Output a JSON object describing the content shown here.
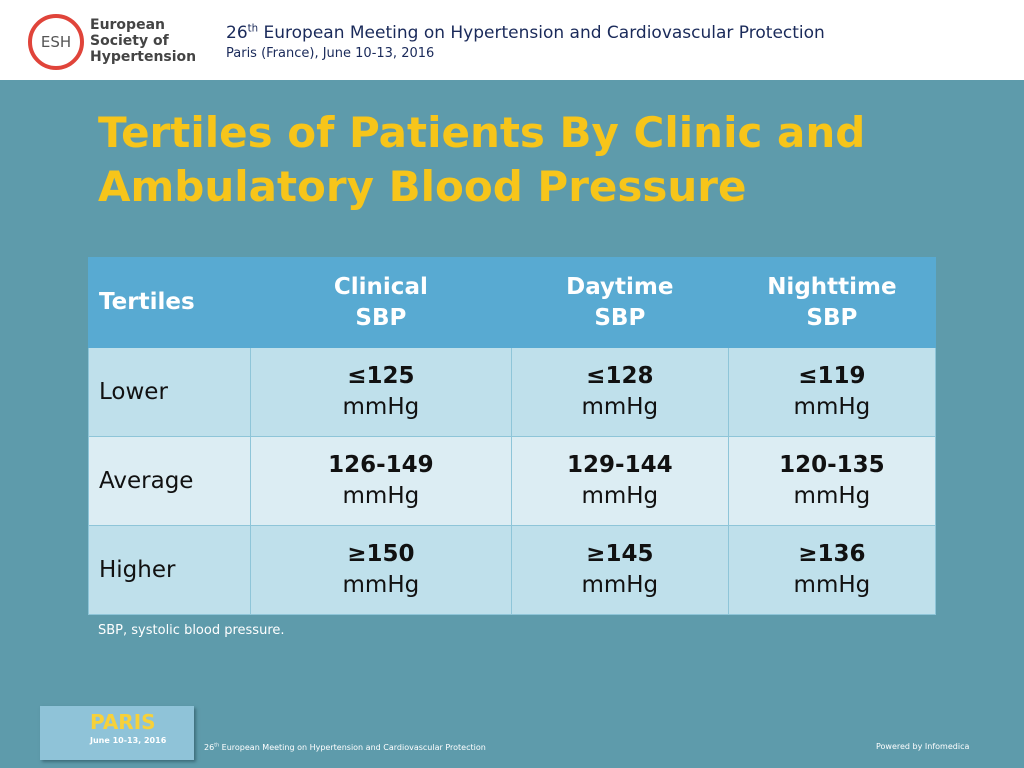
{
  "header": {
    "logo": {
      "mark": "ESH",
      "name_lines": [
        "European",
        "Society of",
        "Hypertension"
      ]
    },
    "meeting": {
      "number": "26",
      "suffix": "th",
      "rest": " European Meeting on Hypertension and Cardiovascular Protection"
    },
    "location": "Paris (France), June 10-13, 2016"
  },
  "slide_title_lines": [
    "Tertiles of Patients By Clinic and",
    "Ambulatory Blood Pressure"
  ],
  "table": {
    "header": [
      [
        "Tertiles"
      ],
      [
        "Clinical",
        "SBP"
      ],
      [
        "Daytime",
        "SBP"
      ],
      [
        "Nighttime",
        "SBP"
      ]
    ],
    "rows": [
      {
        "label": "Lower",
        "cells": [
          {
            "value": "≤125",
            "unit": "mmHg"
          },
          {
            "value": "≤128",
            "unit": "mmHg"
          },
          {
            "value": "≤119",
            "unit": "mmHg"
          }
        ]
      },
      {
        "label": "Average",
        "cells": [
          {
            "value": "126-149",
            "unit": "mmHg"
          },
          {
            "value": "129-144",
            "unit": "mmHg"
          },
          {
            "value": "120-135",
            "unit": "mmHg"
          }
        ]
      },
      {
        "label": "Higher",
        "cells": [
          {
            "value": "≥150",
            "unit": "mmHg"
          },
          {
            "value": "≥145",
            "unit": "mmHg"
          },
          {
            "value": "≥136",
            "unit": "mmHg"
          }
        ]
      }
    ]
  },
  "footnote": "SBP, systolic blood pressure.",
  "footer": {
    "badge": {
      "city": "PARIS",
      "dates": "June 10-13, 2016"
    },
    "meeting": {
      "number": "26",
      "suffix": "th",
      "rest": " European Meeting on Hypertension and Cardiovascular Protection"
    },
    "credit": "Powered by Infomedica"
  }
}
